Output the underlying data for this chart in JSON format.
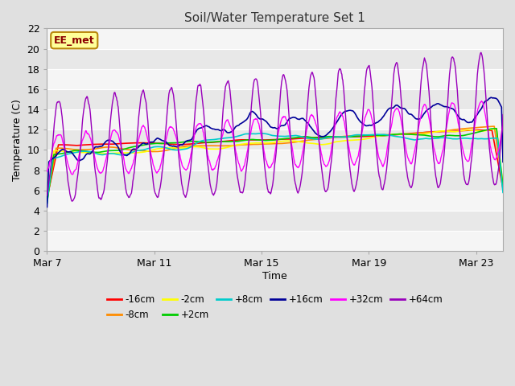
{
  "title": "Soil/Water Temperature Set 1",
  "xlabel": "Time",
  "ylabel": "Temperature (C)",
  "ylim": [
    0,
    22
  ],
  "yticks": [
    0,
    2,
    4,
    6,
    8,
    10,
    12,
    14,
    16,
    18,
    20,
    22
  ],
  "xtick_labels": [
    "Mar 7",
    "Mar 11",
    "Mar 15",
    "Mar 19",
    "Mar 23"
  ],
  "xtick_pos": [
    0,
    4,
    8,
    12,
    16
  ],
  "annotation_text": "EE_met",
  "annotation_color": "#8B0000",
  "annotation_bg": "#FFFF99",
  "annotation_border": "#B8860B",
  "series_labels": [
    "-16cm",
    "-8cm",
    "-2cm",
    "+2cm",
    "+8cm",
    "+16cm",
    "+32cm",
    "+64cm"
  ],
  "series_colors": [
    "#FF0000",
    "#FF8C00",
    "#FFFF00",
    "#00CC00",
    "#00CCCC",
    "#000099",
    "#FF00FF",
    "#9900BB"
  ],
  "bg_color": "#E0E0E0",
  "plot_bg_light": "#F5F5F5",
  "plot_bg_dark": "#E8E8E8",
  "grid_color": "#FFFFFF",
  "n_points": 1000
}
